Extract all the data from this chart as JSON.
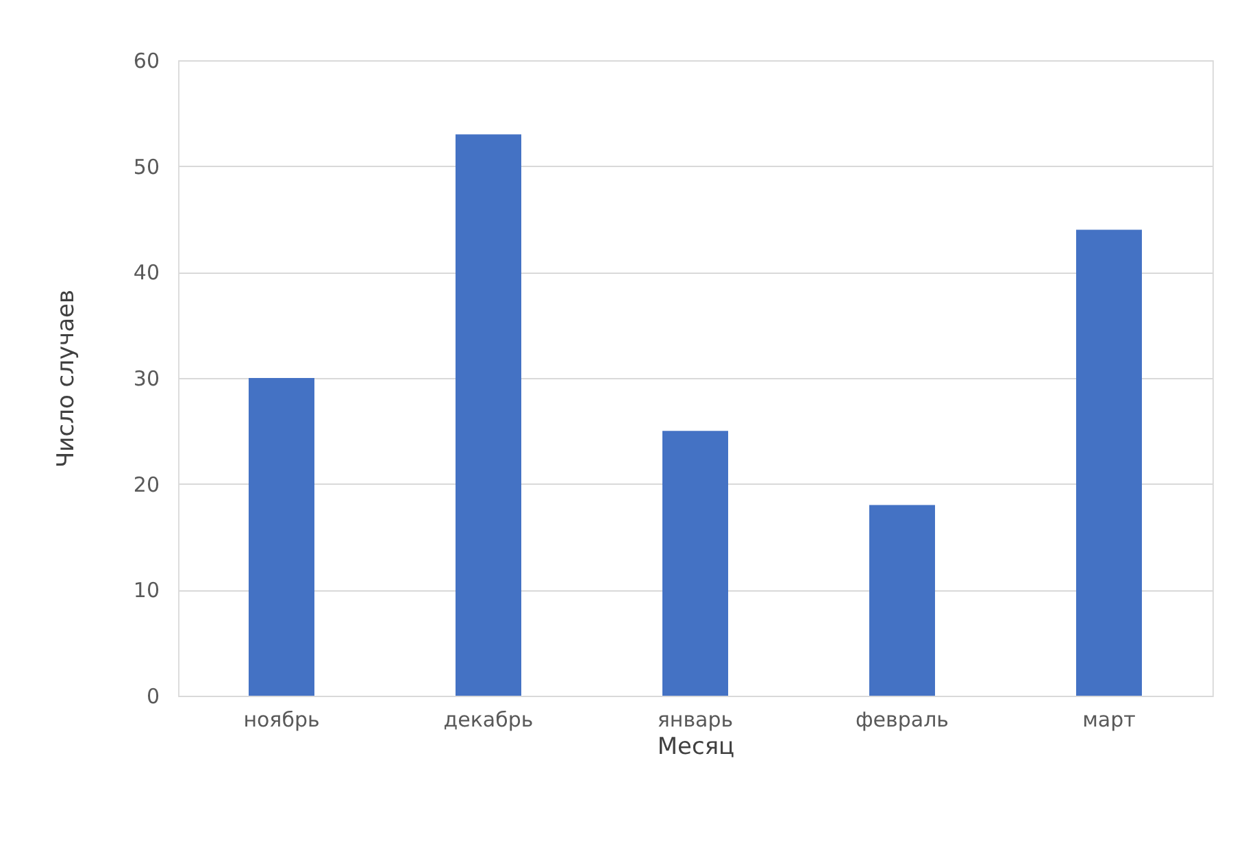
{
  "chart_data": {
    "type": "bar",
    "xlabel": "Месяц",
    "ylabel": "Число случаев",
    "categories": [
      "ноябрь",
      "декабрь",
      "январь",
      "февраль",
      "март"
    ],
    "values": [
      30,
      53,
      25,
      18,
      44
    ],
    "color": "#4472c4",
    "ylim": [
      0,
      60
    ],
    "yticks": [
      0,
      10,
      20,
      30,
      40,
      50,
      60
    ],
    "grid": "y"
  }
}
